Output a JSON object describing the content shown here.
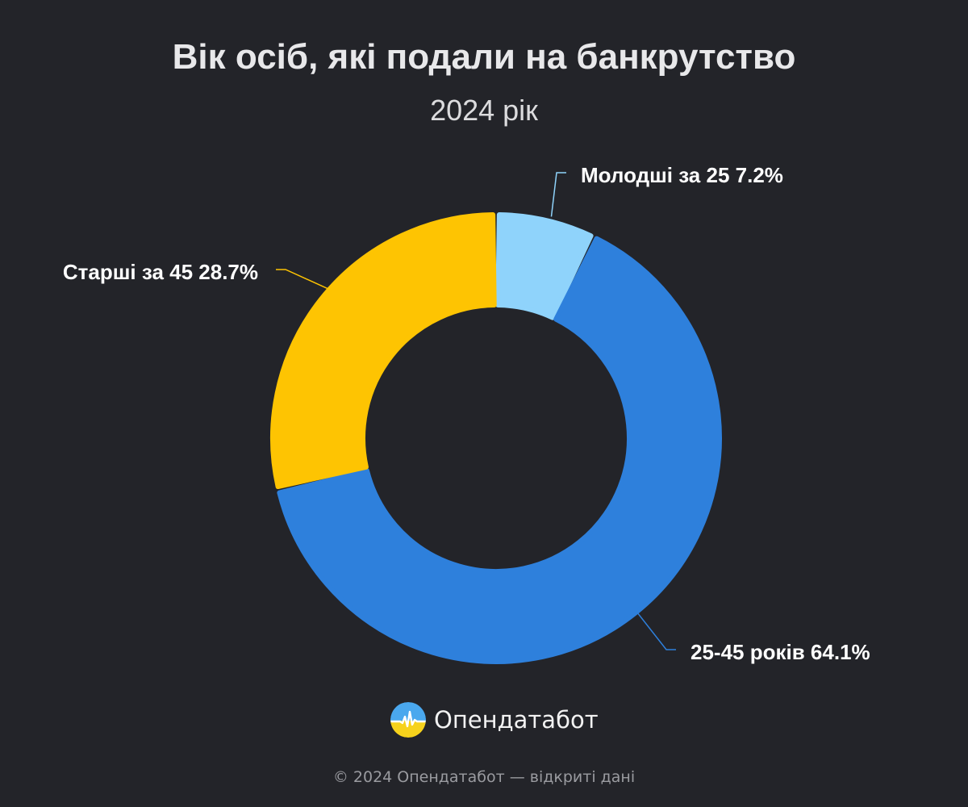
{
  "chart_data": {
    "type": "pie",
    "title": "Вік осіб, які подали на банкрутство",
    "subtitle": "2024 рік",
    "categories": [
      "Молодші за 25",
      "25-45 років",
      "Старші за 45"
    ],
    "values": [
      7.2,
      64.1,
      28.7
    ],
    "labels": [
      "Молодші за 25 7.2%",
      "25-45 років 64.1%",
      "Старші за 45 28.7%"
    ],
    "colors": [
      "#8fd3fb",
      "#2e80dc",
      "#fec402"
    ],
    "donut": true,
    "legend": "none"
  },
  "brand": {
    "name": "Опендатабот",
    "logo_colors": [
      "#4aa8ee",
      "#f6d21c"
    ]
  },
  "footer": {
    "text": "© 2024 Опендатабот — відкриті дані"
  }
}
